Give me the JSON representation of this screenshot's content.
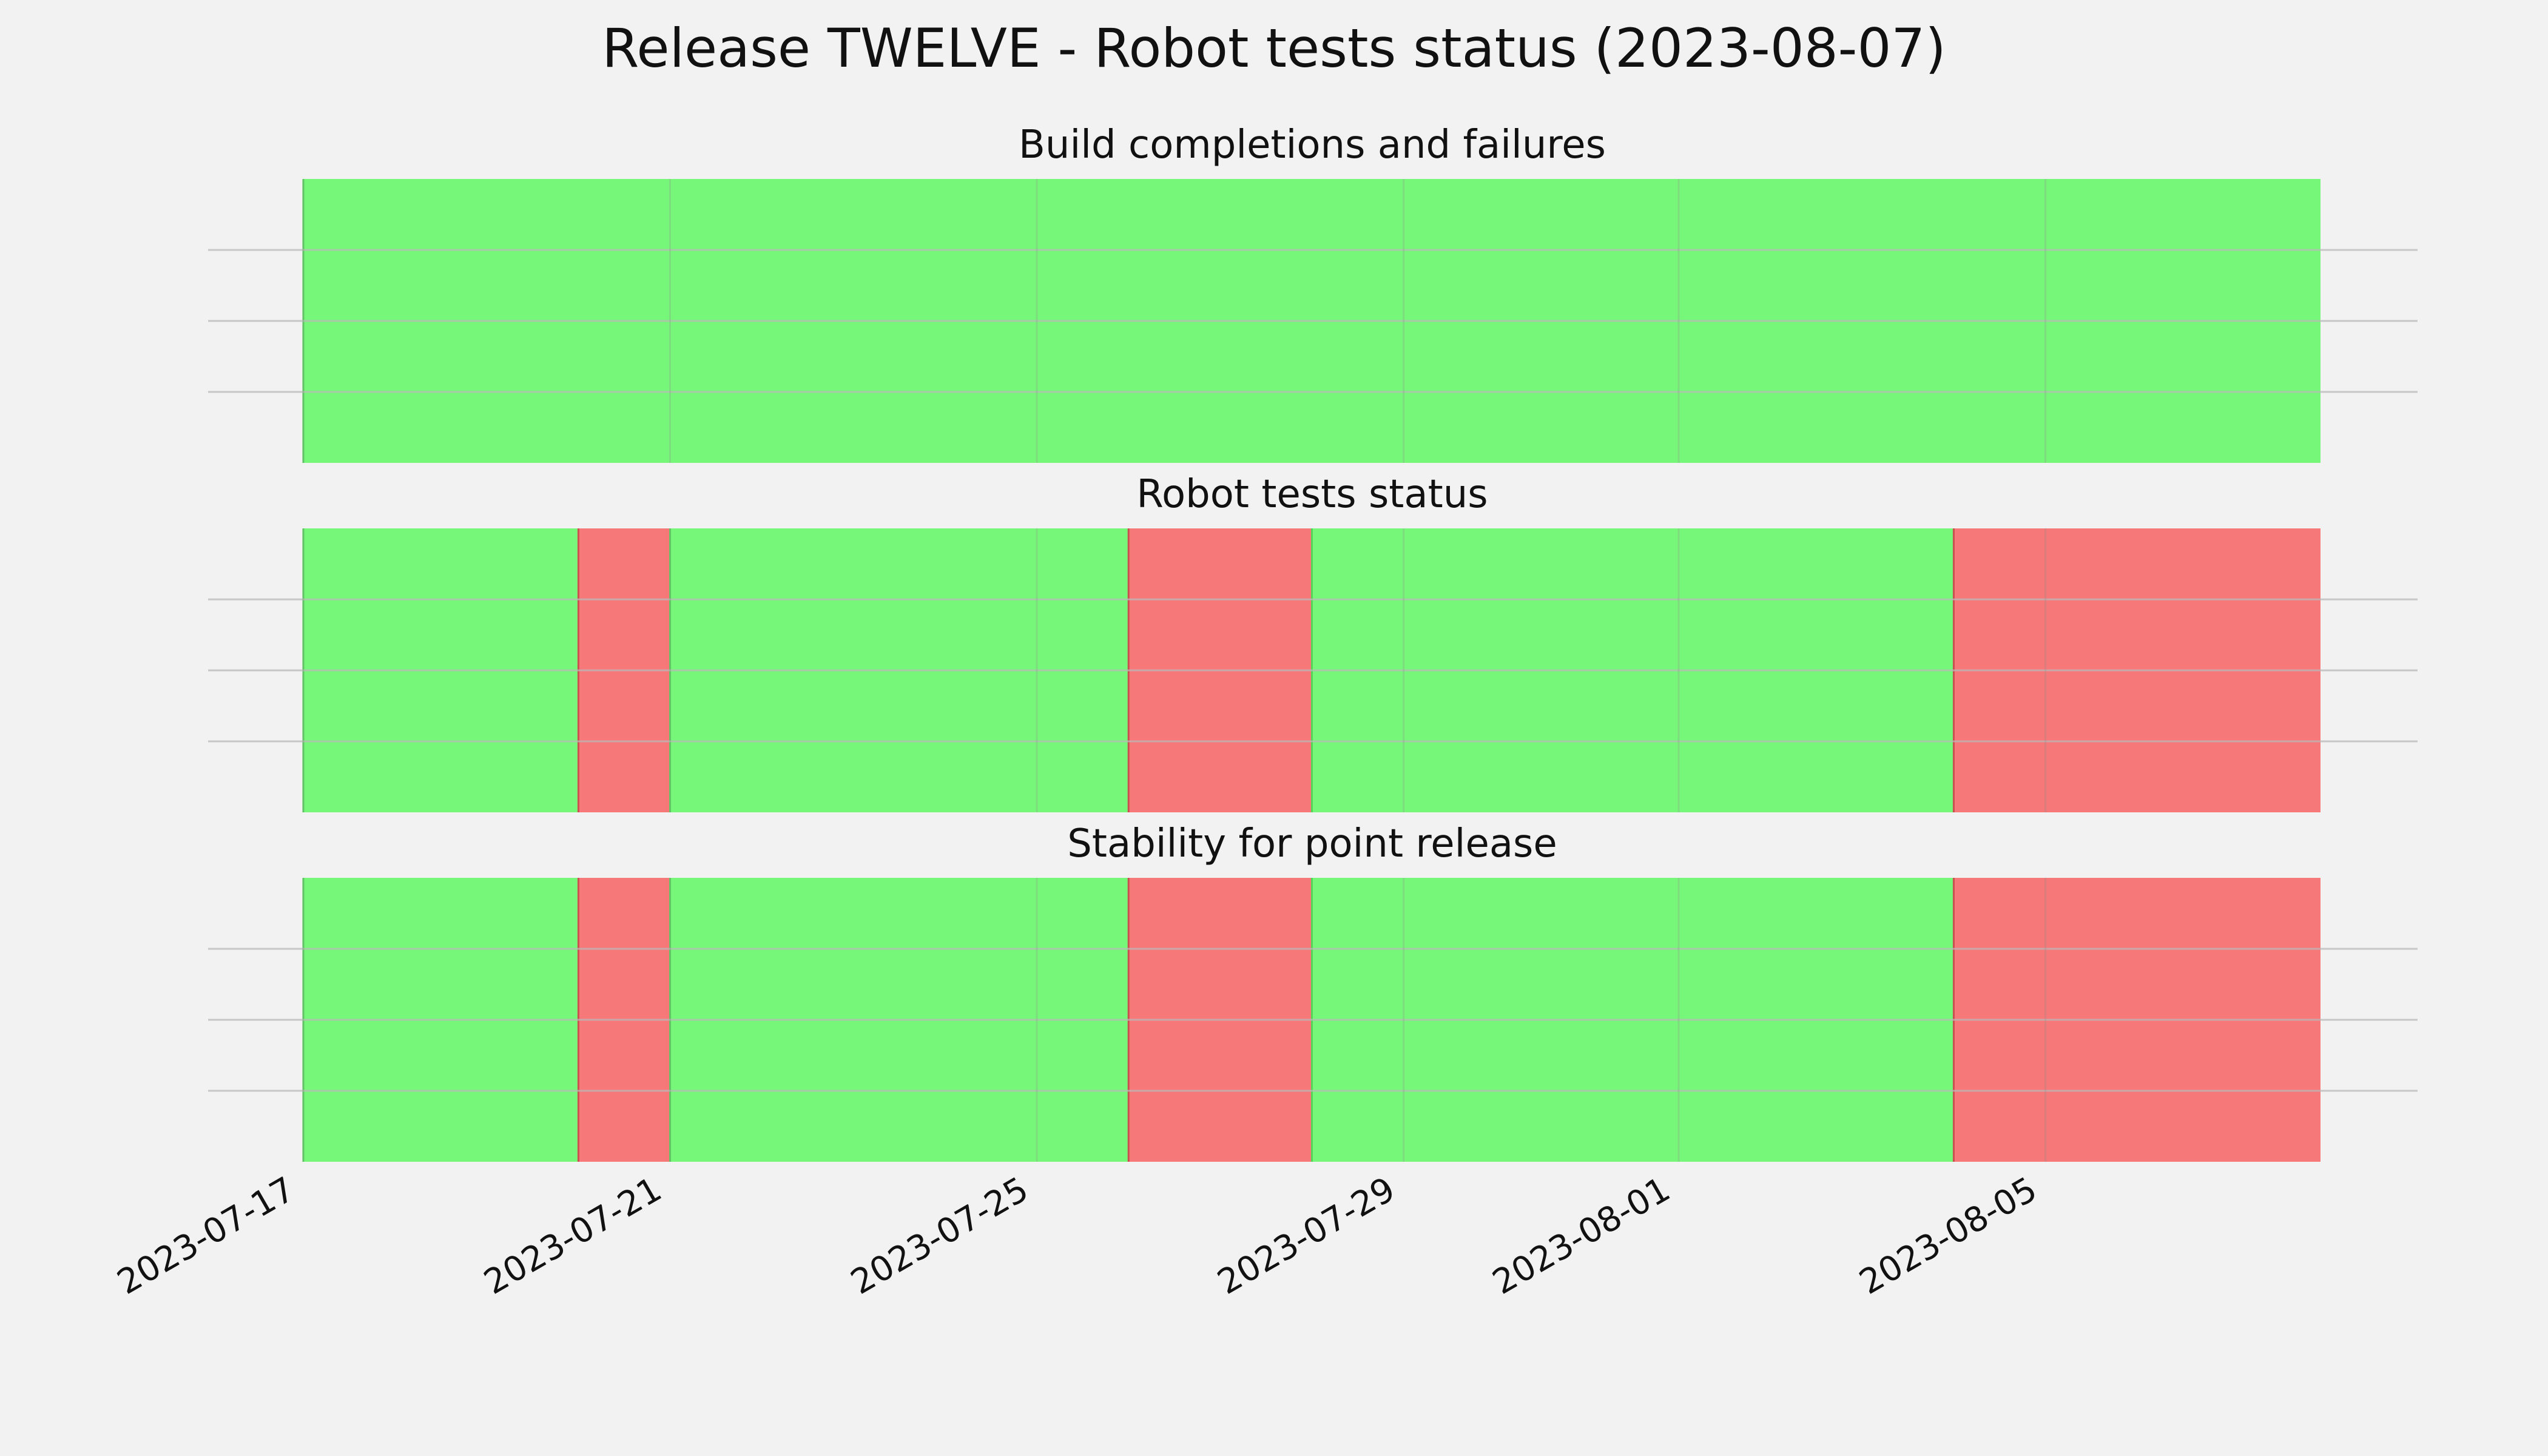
{
  "chart_data": {
    "type": "timeline",
    "title": "Release TWELVE - Robot tests status (2023-08-07)",
    "x_ticks": [
      "2023-07-17",
      "2023-07-21",
      "2023-07-25",
      "2023-07-29",
      "2023-08-01",
      "2023-08-05"
    ],
    "x_range": [
      "2023-07-17",
      "2023-08-08"
    ],
    "grid": true,
    "status_colors": {
      "pass": "#77f77a",
      "fail": "#f77878"
    },
    "panels": [
      {
        "title": "Build completions and failures",
        "segments": [
          {
            "start": "2023-07-17",
            "end": "2023-08-08",
            "status": "pass"
          }
        ]
      },
      {
        "title": "Robot tests status",
        "segments": [
          {
            "start": "2023-07-17",
            "end": "2023-07-20",
            "status": "pass"
          },
          {
            "start": "2023-07-20",
            "end": "2023-07-21",
            "status": "fail"
          },
          {
            "start": "2023-07-21",
            "end": "2023-07-26",
            "status": "pass"
          },
          {
            "start": "2023-07-26",
            "end": "2023-07-28",
            "status": "fail"
          },
          {
            "start": "2023-07-28",
            "end": "2023-08-04",
            "status": "pass"
          },
          {
            "start": "2023-08-04",
            "end": "2023-08-08",
            "status": "fail"
          }
        ]
      },
      {
        "title": "Stability for point release",
        "segments": [
          {
            "start": "2023-07-17",
            "end": "2023-07-20",
            "status": "pass"
          },
          {
            "start": "2023-07-20",
            "end": "2023-07-21",
            "status": "fail"
          },
          {
            "start": "2023-07-21",
            "end": "2023-07-26",
            "status": "pass"
          },
          {
            "start": "2023-07-26",
            "end": "2023-07-28",
            "status": "fail"
          },
          {
            "start": "2023-07-28",
            "end": "2023-08-04",
            "status": "pass"
          },
          {
            "start": "2023-08-04",
            "end": "2023-08-08",
            "status": "fail"
          }
        ]
      }
    ]
  }
}
